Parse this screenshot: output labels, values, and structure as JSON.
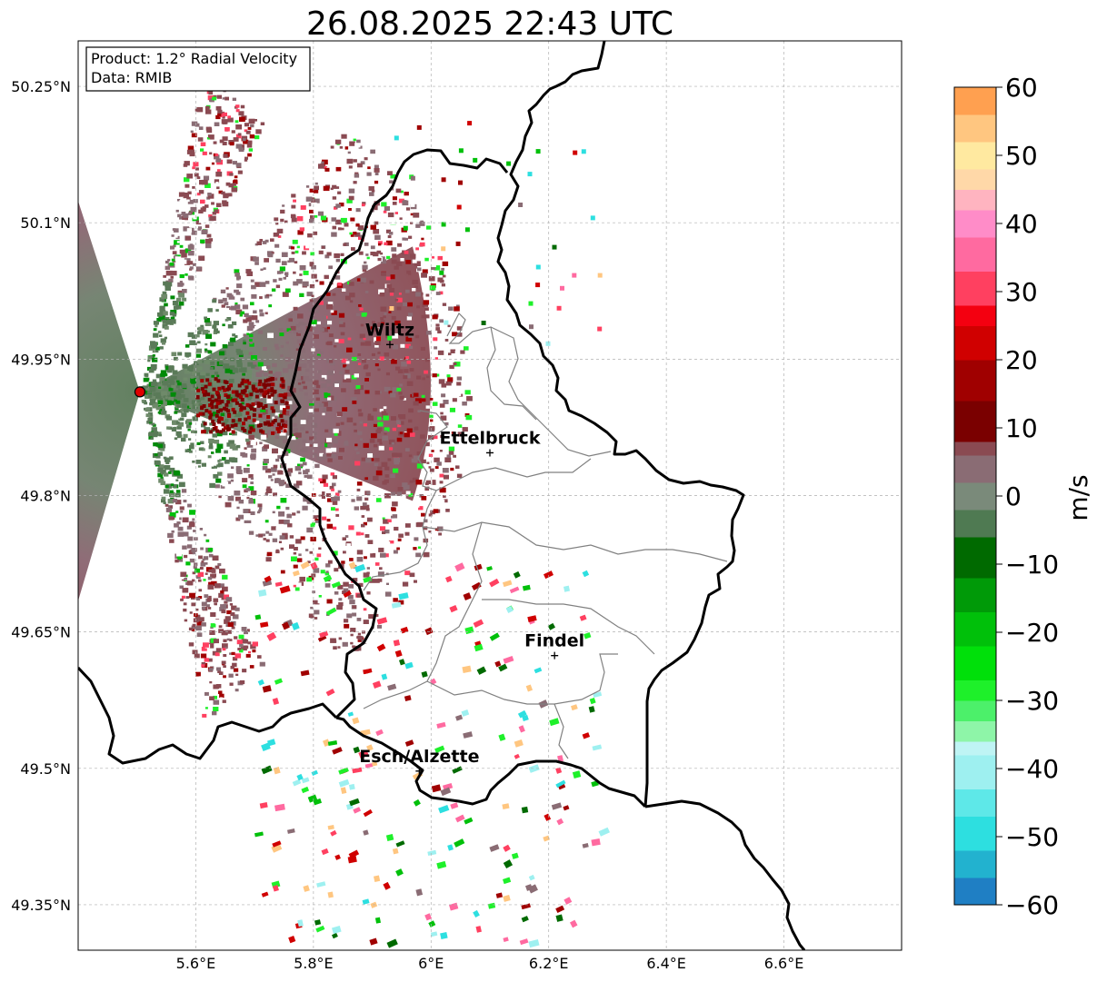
{
  "title": "26.08.2025 22:43 UTC",
  "info": {
    "product": "Product: 1.2° Radial Velocity",
    "data": "Data: RMIB"
  },
  "map": {
    "lon_range": [
      5.4,
      6.8
    ],
    "lat_range": [
      49.3,
      50.3
    ],
    "lon_ticks": [
      {
        "value": 5.6,
        "label": "5.6°E"
      },
      {
        "value": 5.8,
        "label": "5.8°E"
      },
      {
        "value": 6.0,
        "label": "6°E"
      },
      {
        "value": 6.2,
        "label": "6.2°E"
      },
      {
        "value": 6.4,
        "label": "6.4°E"
      },
      {
        "value": 6.6,
        "label": "6.6°E"
      }
    ],
    "lat_ticks": [
      {
        "value": 50.25,
        "label": "50.25°N"
      },
      {
        "value": 50.1,
        "label": "50.1°N"
      },
      {
        "value": 49.95,
        "label": "49.95°N"
      },
      {
        "value": 49.8,
        "label": "49.8°N"
      },
      {
        "value": 49.65,
        "label": "49.65°N"
      },
      {
        "value": 49.5,
        "label": "49.5°N"
      },
      {
        "value": 49.35,
        "label": "49.35°N"
      }
    ],
    "radar_site": {
      "lon": 5.505,
      "lat": 49.914
    },
    "cities": [
      {
        "name": "Wiltz",
        "lon": 5.93,
        "lat": 49.966
      },
      {
        "name": "Ettelbruck",
        "lon": 6.1,
        "lat": 49.847
      },
      {
        "name": "Findel",
        "lon": 6.21,
        "lat": 49.624
      },
      {
        "name": "Esch/Alzette",
        "lon": 5.98,
        "lat": 49.497
      }
    ]
  },
  "colorbar": {
    "label": "m/s",
    "min": -60,
    "max": 60,
    "ticks": [
      {
        "value": 60,
        "label": "60"
      },
      {
        "value": 50,
        "label": "50"
      },
      {
        "value": 40,
        "label": "40"
      },
      {
        "value": 30,
        "label": "30"
      },
      {
        "value": 20,
        "label": "20"
      },
      {
        "value": 10,
        "label": "10"
      },
      {
        "value": 0,
        "label": "0"
      },
      {
        "value": -10,
        "label": "−10"
      },
      {
        "value": -20,
        "label": "−20"
      },
      {
        "value": -30,
        "label": "−30"
      },
      {
        "value": -40,
        "label": "−40"
      },
      {
        "value": -50,
        "label": "−50"
      },
      {
        "value": -60,
        "label": "−60"
      }
    ],
    "color_stops": [
      {
        "from": -60,
        "to": -56,
        "color": "#1f7fc4"
      },
      {
        "from": -56,
        "to": -52,
        "color": "#22b2cf"
      },
      {
        "from": -52,
        "to": -47,
        "color": "#2ddfe0"
      },
      {
        "from": -47,
        "to": -43,
        "color": "#5ee8e8"
      },
      {
        "from": -43,
        "to": -38,
        "color": "#9ef0f0"
      },
      {
        "from": -38,
        "to": -36,
        "color": "#bff4f4"
      },
      {
        "from": -36,
        "to": -33,
        "color": "#8ef5a8"
      },
      {
        "from": -33,
        "to": -30,
        "color": "#4cf06a"
      },
      {
        "from": -30,
        "to": -27,
        "color": "#1ef02a"
      },
      {
        "from": -27,
        "to": -22,
        "color": "#00e00a"
      },
      {
        "from": -22,
        "to": -17,
        "color": "#00c00a"
      },
      {
        "from": -17,
        "to": -12,
        "color": "#009a08"
      },
      {
        "from": -12,
        "to": -6,
        "color": "#006a00"
      },
      {
        "from": -6,
        "to": -2,
        "color": "#4f7a52"
      },
      {
        "from": -2,
        "to": 2,
        "color": "#7a8a7a"
      },
      {
        "from": 2,
        "to": 6,
        "color": "#8a6c74"
      },
      {
        "from": 6,
        "to": 8,
        "color": "#8a4a52"
      },
      {
        "from": 8,
        "to": 14,
        "color": "#7a0000"
      },
      {
        "from": 14,
        "to": 20,
        "color": "#a00000"
      },
      {
        "from": 20,
        "to": 25,
        "color": "#d00000"
      },
      {
        "from": 25,
        "to": 28,
        "color": "#f40010"
      },
      {
        "from": 28,
        "to": 33,
        "color": "#ff4060"
      },
      {
        "from": 33,
        "to": 38,
        "color": "#ff6aa0"
      },
      {
        "from": 38,
        "to": 42,
        "color": "#ff8cc8"
      },
      {
        "from": 42,
        "to": 45,
        "color": "#ffb4c0"
      },
      {
        "from": 45,
        "to": 48,
        "color": "#ffd8a8"
      },
      {
        "from": 48,
        "to": 52,
        "color": "#ffe9a0"
      },
      {
        "from": 52,
        "to": 56,
        "color": "#ffc680"
      },
      {
        "from": 56,
        "to": 60,
        "color": "#ffa050"
      }
    ]
  }
}
